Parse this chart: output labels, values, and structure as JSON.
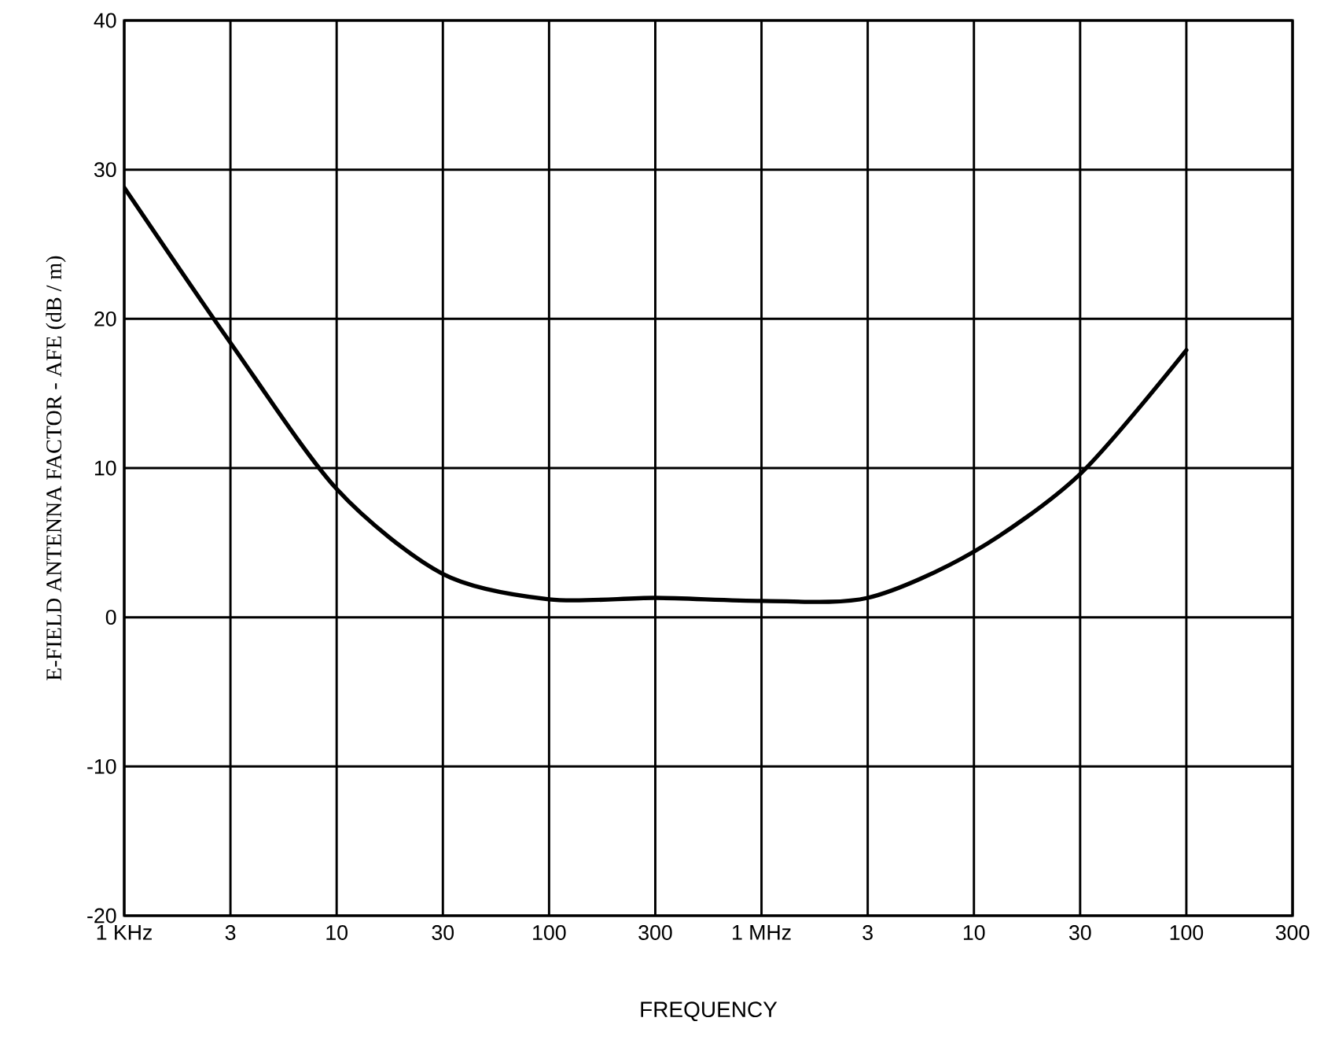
{
  "chart_data": {
    "type": "line",
    "xlabel": "FREQUENCY",
    "ylabel": "E-FIELD ANTENNA FACTOR - AFE (dB / m)",
    "categories": [
      "1 KHz",
      "3",
      "10",
      "30",
      "100",
      "300",
      "1 MHz",
      "3",
      "10",
      "30",
      "100",
      "300"
    ],
    "series": [
      {
        "color": "#000000",
        "values": [
          28.8,
          18.4,
          8.6,
          2.9,
          1.2,
          1.3,
          1.1,
          1.3,
          4.4,
          9.6,
          17.9,
          null
        ]
      }
    ],
    "ylim": [
      -20,
      40
    ],
    "yticks": [
      -20,
      -10,
      0,
      10,
      20,
      30,
      40
    ],
    "grid": true,
    "marker": "none",
    "line_style": "solid"
  }
}
